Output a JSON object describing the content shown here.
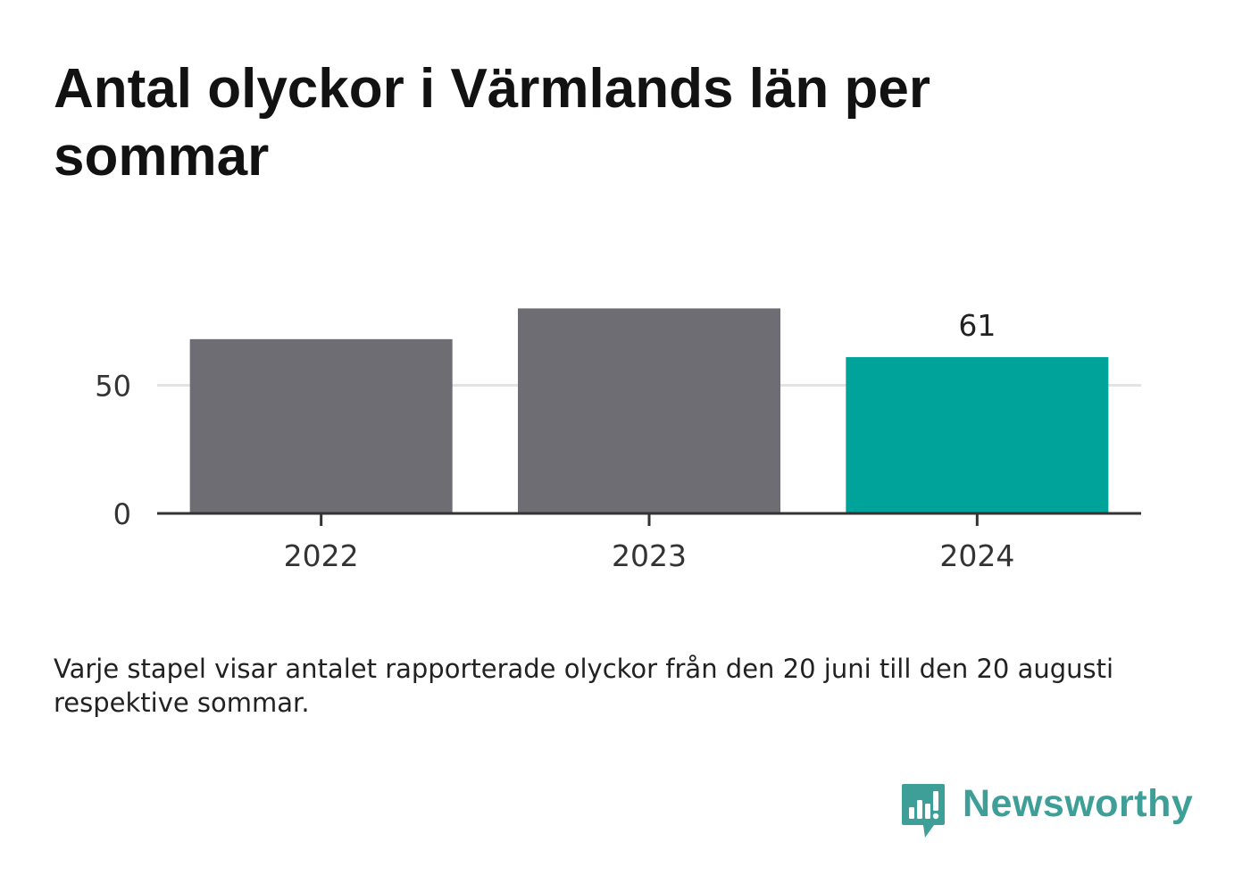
{
  "title": "Antal olyckor i Värmlands län per sommar",
  "footnote": "Varje stapel visar antalet rapporterade olyckor från den 20 juni till den 20 augusti respektive sommar.",
  "brand": {
    "name": "Newsworthy",
    "icon": "newsworthy-logo-icon",
    "color": "#3e9f98"
  },
  "colors": {
    "default_bar": "#6e6d73",
    "highlight_bar": "#00a399",
    "grid": "#e3e3e3",
    "axis": "#333333"
  },
  "chart_data": {
    "type": "bar",
    "categories": [
      "2022",
      "2023",
      "2024"
    ],
    "values": [
      68,
      80,
      61
    ],
    "highlight_index": 2,
    "data_labels": [
      null,
      null,
      "61"
    ],
    "yticks": [
      0,
      50
    ],
    "ylim": [
      0,
      100
    ],
    "grid": true,
    "xlabel": "",
    "ylabel": ""
  }
}
